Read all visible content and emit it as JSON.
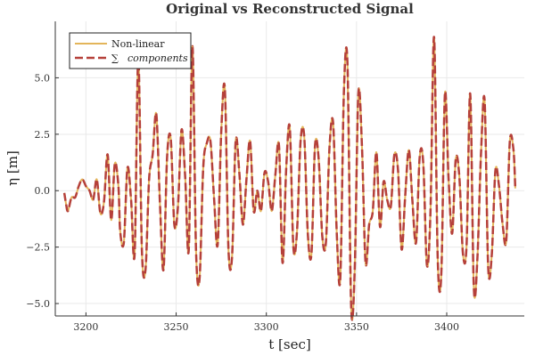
{
  "chart_data": {
    "type": "line",
    "title": "Original vs Reconstructed Signal",
    "xlabel": "t [sec]",
    "ylabel": "η [m]",
    "xlim": [
      3183,
      3443
    ],
    "ylim": [
      -5.55,
      7.5
    ],
    "xticks": [
      3200,
      3250,
      3300,
      3350,
      3400
    ],
    "xtick_labels": [
      "3200",
      "3250",
      "3300",
      "3350",
      "3400"
    ],
    "yticks": [
      -5.0,
      -2.5,
      0.0,
      2.5,
      5.0
    ],
    "ytick_labels": [
      "−5.0",
      "−2.5",
      "0.0",
      "2.5",
      "5.0"
    ],
    "grid": true,
    "legend_position": "top-left",
    "legend_sum_symbol": "∑",
    "series": [
      {
        "name": "Non-linear",
        "color": "#e3b55a",
        "style": "solid",
        "x": [
          3188,
          3189,
          3190,
          3192,
          3194,
          3196,
          3198,
          3200,
          3202,
          3204,
          3206,
          3208,
          3210,
          3212,
          3214,
          3216,
          3218,
          3219,
          3221,
          3223,
          3225,
          3227,
          3229,
          3231,
          3233,
          3235,
          3237,
          3239,
          3241,
          3243,
          3245,
          3247,
          3249,
          3251,
          3253,
          3255,
          3257,
          3259,
          3261,
          3263,
          3265,
          3267,
          3269,
          3271,
          3273,
          3275,
          3277,
          3279,
          3281,
          3283,
          3285,
          3287,
          3289,
          3291,
          3293,
          3295,
          3297,
          3299,
          3301,
          3303,
          3305,
          3307,
          3309,
          3311,
          3313,
          3315,
          3317,
          3319,
          3321,
          3323,
          3325,
          3327,
          3329,
          3331,
          3333,
          3335,
          3337,
          3339,
          3341,
          3343,
          3345,
          3347,
          3349,
          3351,
          3353,
          3355,
          3357,
          3359,
          3361,
          3363,
          3365,
          3367,
          3369,
          3371,
          3373,
          3375,
          3377,
          3379,
          3381,
          3383,
          3385,
          3387,
          3389,
          3391,
          3393,
          3395,
          3397,
          3399,
          3401,
          3403,
          3405,
          3407,
          3409,
          3411,
          3413,
          3415,
          3417,
          3419,
          3421,
          3423,
          3425,
          3427,
          3429,
          3431,
          3433,
          3435,
          3437,
          3438
        ],
        "y": [
          -0.1,
          -0.6,
          -0.9,
          -0.3,
          -0.3,
          0.2,
          0.5,
          0.2,
          0.0,
          -0.4,
          0.5,
          -1.0,
          -0.5,
          1.6,
          -1.3,
          1.2,
          0.2,
          -1.8,
          -2.3,
          1.0,
          -0.4,
          -2.8,
          5.9,
          -2.6,
          -3.5,
          0.5,
          1.6,
          3.4,
          -0.5,
          -3.5,
          1.5,
          2.3,
          -1.5,
          -0.7,
          2.7,
          0.6,
          -2.6,
          6.4,
          -2.6,
          -3.9,
          1.0,
          2.1,
          2.2,
          -0.3,
          -2.4,
          2.6,
          4.5,
          -2.6,
          -2.9,
          2.2,
          0.8,
          -1.5,
          0.5,
          2.2,
          -0.9,
          0.0,
          -0.9,
          0.8,
          0.4,
          -0.9,
          0.7,
          2.0,
          -3.2,
          1.0,
          2.8,
          -2.5,
          -1.8,
          2.2,
          2.4,
          -1.9,
          -2.8,
          2.0,
          1.4,
          -2.0,
          -2.3,
          1.9,
          3.0,
          -1.8,
          -3.9,
          4.4,
          5.6,
          -5.1,
          -3.5,
          4.3,
          2.0,
          -3.2,
          -1.5,
          -0.9,
          1.7,
          -1.6,
          0.4,
          -0.4,
          -0.7,
          1.6,
          0.9,
          -2.6,
          -0.2,
          1.8,
          -0.5,
          -2.3,
          1.5,
          1.2,
          -3.3,
          -0.9,
          6.8,
          -3.0,
          -3.7,
          4.3,
          0.6,
          -1.9,
          1.4,
          0.6,
          -2.8,
          -2.4,
          4.3,
          -4.3,
          -3.0,
          1.6,
          4.0,
          -3.4,
          -2.8,
          0.9,
          0.2,
          -1.5,
          -2.2,
          2.2,
          1.8,
          0.1
        ]
      },
      {
        "name": "components",
        "color": "#b5403a",
        "style": "dashed",
        "x": [
          3188,
          3189,
          3190,
          3192,
          3194,
          3196,
          3198,
          3200,
          3202,
          3204,
          3206,
          3208,
          3210,
          3212,
          3214,
          3216,
          3218,
          3219,
          3221,
          3223,
          3225,
          3227,
          3229,
          3231,
          3233,
          3235,
          3237,
          3239,
          3241,
          3243,
          3245,
          3247,
          3249,
          3251,
          3253,
          3255,
          3257,
          3259,
          3261,
          3263,
          3265,
          3267,
          3269,
          3271,
          3273,
          3275,
          3277,
          3279,
          3281,
          3283,
          3285,
          3287,
          3289,
          3291,
          3293,
          3295,
          3297,
          3299,
          3301,
          3303,
          3305,
          3307,
          3309,
          3311,
          3313,
          3315,
          3317,
          3319,
          3321,
          3323,
          3325,
          3327,
          3329,
          3331,
          3333,
          3335,
          3337,
          3339,
          3341,
          3343,
          3345,
          3347,
          3349,
          3351,
          3353,
          3355,
          3357,
          3359,
          3361,
          3363,
          3365,
          3367,
          3369,
          3371,
          3373,
          3375,
          3377,
          3379,
          3381,
          3383,
          3385,
          3387,
          3389,
          3391,
          3393,
          3395,
          3397,
          3399,
          3401,
          3403,
          3405,
          3407,
          3409,
          3411,
          3413,
          3415,
          3417,
          3419,
          3421,
          3423,
          3425,
          3427,
          3429,
          3431,
          3433,
          3435,
          3437,
          3438
        ],
        "y": [
          -0.1,
          -0.6,
          -0.9,
          -0.3,
          -0.3,
          0.2,
          0.5,
          0.2,
          0.0,
          -0.4,
          0.5,
          -1.0,
          -0.5,
          1.6,
          -1.3,
          1.2,
          0.2,
          -1.8,
          -2.3,
          1.0,
          -0.4,
          -2.8,
          5.9,
          -2.6,
          -3.5,
          0.5,
          1.6,
          3.4,
          -0.5,
          -3.5,
          1.5,
          2.3,
          -1.5,
          -0.7,
          2.7,
          0.6,
          -2.6,
          6.4,
          -2.6,
          -3.9,
          1.0,
          2.1,
          2.2,
          -0.3,
          -2.4,
          2.6,
          4.5,
          -2.6,
          -2.9,
          2.2,
          0.8,
          -1.5,
          0.5,
          2.2,
          -0.9,
          0.0,
          -0.9,
          0.8,
          0.4,
          -0.9,
          0.7,
          2.0,
          -3.2,
          1.0,
          2.8,
          -2.5,
          -1.8,
          2.2,
          2.4,
          -1.9,
          -2.8,
          2.0,
          1.4,
          -2.0,
          -2.3,
          1.9,
          3.0,
          -1.8,
          -3.9,
          4.4,
          5.6,
          -5.1,
          -3.5,
          4.3,
          2.0,
          -3.2,
          -1.5,
          -0.9,
          1.7,
          -1.6,
          0.4,
          -0.4,
          -0.7,
          1.6,
          0.9,
          -2.6,
          -0.2,
          1.8,
          -0.5,
          -2.3,
          1.5,
          1.2,
          -3.3,
          -0.9,
          6.8,
          -3.0,
          -3.7,
          4.3,
          0.6,
          -1.9,
          1.4,
          0.6,
          -2.8,
          -2.4,
          4.3,
          -4.3,
          -3.0,
          1.6,
          4.0,
          -3.4,
          -2.8,
          0.9,
          0.2,
          -1.5,
          -2.2,
          2.2,
          1.8,
          0.1
        ]
      }
    ]
  }
}
